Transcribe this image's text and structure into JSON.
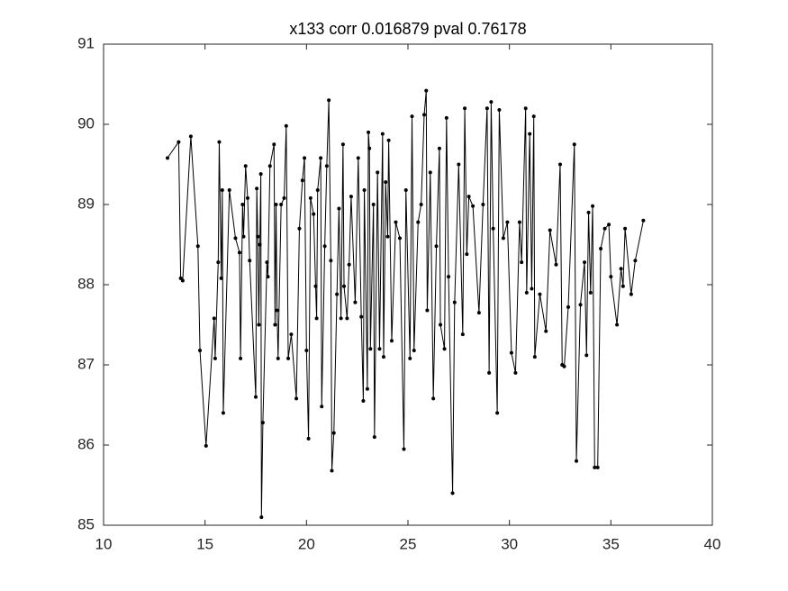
{
  "chart_data": {
    "type": "line",
    "title": "x133 corr 0.016879 pval 0.76178",
    "color": "#000000",
    "xlim": [
      10,
      40
    ],
    "xticks": [
      10,
      15,
      20,
      25,
      30,
      35,
      40
    ],
    "ylim": [
      85,
      91
    ],
    "yticks": [
      85,
      86,
      87,
      88,
      89,
      90,
      91
    ],
    "x": [
      13.15,
      13.7,
      13.8,
      13.9,
      14.3,
      14.65,
      14.75,
      15.05,
      15.45,
      15.5,
      15.65,
      15.7,
      15.8,
      15.85,
      15.9,
      16.2,
      16.5,
      16.7,
      16.75,
      16.85,
      16.9,
      17.0,
      17.1,
      17.2,
      17.5,
      17.55,
      17.6,
      17.65,
      17.7,
      17.75,
      17.78,
      17.85,
      18.05,
      18.1,
      18.2,
      18.4,
      18.45,
      18.5,
      18.55,
      18.6,
      18.75,
      18.9,
      19.0,
      19.1,
      19.25,
      19.5,
      19.65,
      19.8,
      19.9,
      20.0,
      20.1,
      20.2,
      20.35,
      20.45,
      20.5,
      20.55,
      20.7,
      20.75,
      20.9,
      21.0,
      21.1,
      21.2,
      21.25,
      21.35,
      21.5,
      21.6,
      21.7,
      21.8,
      21.85,
      22.0,
      22.1,
      22.2,
      22.4,
      22.55,
      22.7,
      22.8,
      22.85,
      23.0,
      23.05,
      23.1,
      23.15,
      23.3,
      23.35,
      23.5,
      23.6,
      23.75,
      23.8,
      23.9,
      24.0,
      24.05,
      24.2,
      24.4,
      24.6,
      24.8,
      24.9,
      25.1,
      25.2,
      25.3,
      25.5,
      25.65,
      25.8,
      25.9,
      25.95,
      26.1,
      26.25,
      26.4,
      26.55,
      26.6,
      26.8,
      26.9,
      27.0,
      27.2,
      27.3,
      27.5,
      27.7,
      27.8,
      27.9,
      28.0,
      28.2,
      28.5,
      28.7,
      28.9,
      29.0,
      29.1,
      29.2,
      29.4,
      29.5,
      29.7,
      29.9,
      30.1,
      30.3,
      30.5,
      30.6,
      30.8,
      30.85,
      31.0,
      31.1,
      31.2,
      31.25,
      31.5,
      31.8,
      32.0,
      32.3,
      32.5,
      32.6,
      32.7,
      32.9,
      33.2,
      33.3,
      33.5,
      33.7,
      33.8,
      33.9,
      34.0,
      34.1,
      34.2,
      34.35,
      34.5,
      34.7,
      34.9,
      35.0,
      35.3,
      35.5,
      35.6,
      35.7,
      36.0,
      36.2,
      36.6
    ],
    "values": [
      89.58,
      89.78,
      88.08,
      88.05,
      89.85,
      88.48,
      87.18,
      85.99,
      87.58,
      87.08,
      88.28,
      89.78,
      88.08,
      89.18,
      86.4,
      89.18,
      88.58,
      88.4,
      87.08,
      89.0,
      88.6,
      89.48,
      89.08,
      88.3,
      86.6,
      89.2,
      88.6,
      87.5,
      88.5,
      89.38,
      85.1,
      86.28,
      88.28,
      88.1,
      89.48,
      89.75,
      87.5,
      89.0,
      87.68,
      87.08,
      89.0,
      89.08,
      89.98,
      87.08,
      87.38,
      86.58,
      88.7,
      89.3,
      89.58,
      87.18,
      86.08,
      89.08,
      88.88,
      87.98,
      87.58,
      89.18,
      89.58,
      86.48,
      88.48,
      89.48,
      90.3,
      88.3,
      85.68,
      86.15,
      87.88,
      88.95,
      87.58,
      89.75,
      87.98,
      87.58,
      88.25,
      89.1,
      87.78,
      89.58,
      87.6,
      86.55,
      89.18,
      86.7,
      89.9,
      89.7,
      87.2,
      89.0,
      86.1,
      89.4,
      87.2,
      89.88,
      87.1,
      89.28,
      88.6,
      89.8,
      87.3,
      88.78,
      88.58,
      85.95,
      89.18,
      87.08,
      90.1,
      87.18,
      88.78,
      89.0,
      90.12,
      90.42,
      87.68,
      89.4,
      86.58,
      88.48,
      89.7,
      87.5,
      87.2,
      90.08,
      88.1,
      85.4,
      87.78,
      89.5,
      87.38,
      90.2,
      88.38,
      89.1,
      88.98,
      87.65,
      89.0,
      90.2,
      86.9,
      90.28,
      88.7,
      86.4,
      90.18,
      88.58,
      88.78,
      87.15,
      86.9,
      88.78,
      88.28,
      90.2,
      87.9,
      89.88,
      87.95,
      90.1,
      87.1,
      87.88,
      87.42,
      88.68,
      88.25,
      89.5,
      87.0,
      86.98,
      87.72,
      89.75,
      85.8,
      87.75,
      88.28,
      87.12,
      88.9,
      87.9,
      88.98,
      85.72,
      85.72,
      88.45,
      88.7,
      88.75,
      88.1,
      87.5,
      88.2,
      87.98,
      88.7,
      87.88,
      88.3,
      88.8
    ]
  }
}
